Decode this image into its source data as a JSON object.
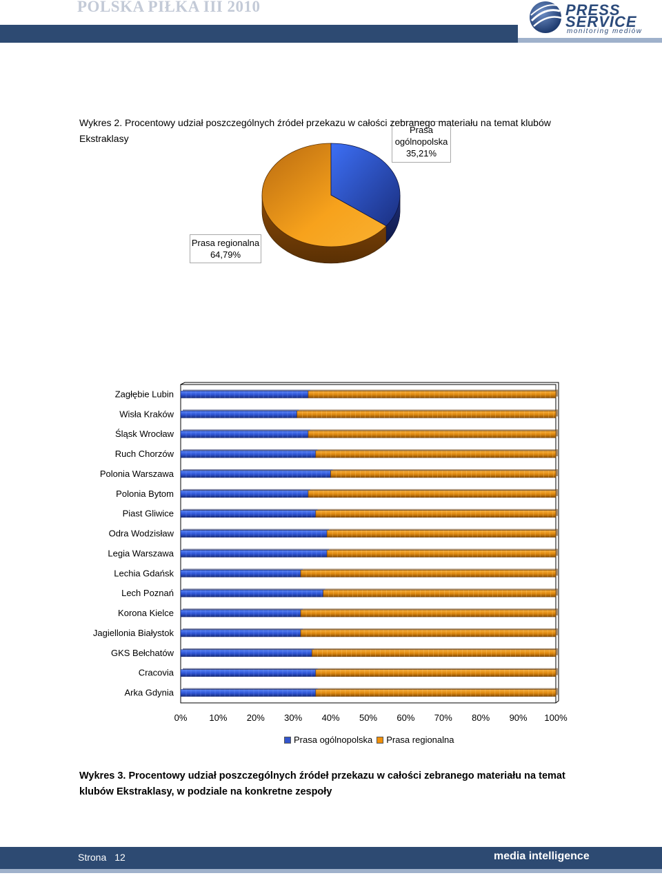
{
  "header": {
    "title": "POLSKA PIŁKA   III 2010",
    "logo_line1": "PRESS",
    "logo_line2": "SERVICE",
    "logo_sub": "monitoring mediów"
  },
  "colors": {
    "blue": "#3355cc",
    "orange": "#f0900a",
    "header_blue": "#2d4a72"
  },
  "pie_chart": {
    "chart_data": {
      "type": "pie",
      "labels": [
        "Prasa ogólnopolska",
        "Prasa regionalna"
      ],
      "values": [
        35.21,
        64.79
      ],
      "label_lines": [
        [
          "Prasa",
          "ogólnopolska",
          "35,21%"
        ],
        [
          "Prasa regionalna",
          "64,79%"
        ]
      ]
    }
  },
  "caption1": "Wykres 2. Procentowy udział poszczególnych źródeł przekazu w całości zebranego materiału na temat klubów Ekstraklasy",
  "bar_chart": {
    "chart_data": {
      "type": "bar",
      "orientation": "horizontal",
      "stacked": true,
      "categories": [
        "Zagłębie Lubin",
        "Wisła Kraków",
        "Śląsk Wrocław",
        "Ruch Chorzów",
        "Polonia Warszawa",
        "Polonia Bytom",
        "Piast Gliwice",
        "Odra Wodzisław",
        "Legia Warszawa",
        "Lechia Gdańsk",
        "Lech Poznań",
        "Korona Kielce",
        "Jagiellonia Białystok",
        "GKS Bełchatów",
        "Cracovia",
        "Arka Gdynia"
      ],
      "series": [
        {
          "name": "Prasa ogólnopolska",
          "values": [
            34,
            31,
            34,
            36,
            40,
            34,
            36,
            39,
            39,
            32,
            38,
            32,
            32,
            35,
            36,
            36
          ]
        },
        {
          "name": "Prasa regionalna",
          "values": [
            66,
            69,
            66,
            64,
            60,
            66,
            64,
            61,
            61,
            68,
            62,
            68,
            68,
            65,
            64,
            64
          ]
        }
      ],
      "xlim": [
        0,
        100
      ],
      "x_ticks": [
        "0%",
        "10%",
        "20%",
        "30%",
        "40%",
        "50%",
        "60%",
        "70%",
        "80%",
        "90%",
        "100%"
      ],
      "legend": "bottom"
    }
  },
  "caption2": "Wykres 3. Procentowy udział poszczególnych źródeł przekazu w całości zebranego materiału na temat klubów Ekstraklasy, w podziale na konkretne zespoły",
  "footer": {
    "page_label": "Strona",
    "page_number": "12",
    "brand": "media intelligence"
  }
}
